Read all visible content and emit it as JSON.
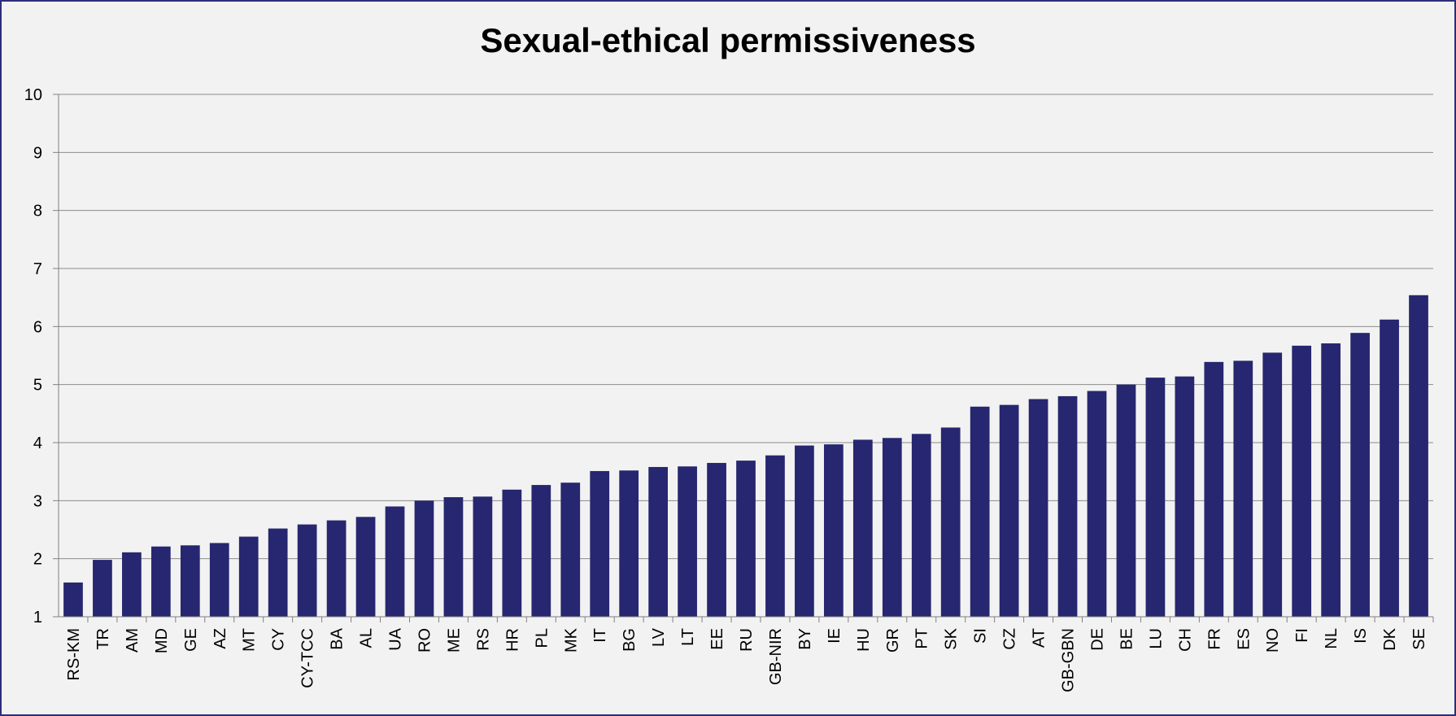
{
  "chart_data": {
    "type": "bar",
    "title": "Sexual-ethical permissiveness",
    "xlabel": "",
    "ylabel": "",
    "ylim": [
      1,
      10
    ],
    "yticks": [
      1,
      2,
      3,
      4,
      5,
      6,
      7,
      8,
      9,
      10
    ],
    "grid": true,
    "legend": "none",
    "bar_color": "#262770",
    "categories": [
      "RS-KM",
      "TR",
      "AM",
      "MD",
      "GE",
      "AZ",
      "MT",
      "CY",
      "CY-TCC",
      "BA",
      "AL",
      "UA",
      "RO",
      "ME",
      "RS",
      "HR",
      "PL",
      "MK",
      "IT",
      "BG",
      "LV",
      "LT",
      "EE",
      "RU",
      "GB-NIR",
      "BY",
      "IE",
      "HU",
      "GR",
      "PT",
      "SK",
      "SI",
      "CZ",
      "AT",
      "GB-GBN",
      "DE",
      "BE",
      "LU",
      "CH",
      "FR",
      "ES",
      "NO",
      "FI",
      "NL",
      "IS",
      "DK",
      "SE"
    ],
    "values": [
      1.59,
      1.98,
      2.11,
      2.21,
      2.23,
      2.27,
      2.38,
      2.52,
      2.59,
      2.66,
      2.72,
      2.9,
      3.0,
      3.06,
      3.07,
      3.19,
      3.27,
      3.31,
      3.51,
      3.52,
      3.58,
      3.59,
      3.65,
      3.69,
      3.78,
      3.95,
      3.97,
      4.05,
      4.08,
      4.15,
      4.26,
      4.62,
      4.65,
      4.75,
      4.8,
      4.89,
      5.0,
      5.12,
      5.14,
      5.39,
      5.41,
      5.55,
      5.67,
      5.71,
      5.89,
      6.12,
      6.54
    ]
  }
}
